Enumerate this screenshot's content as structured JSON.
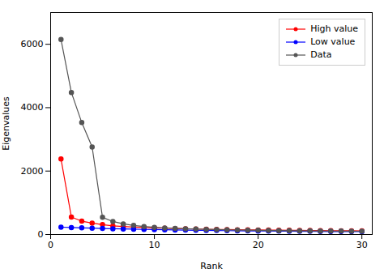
{
  "chart_data": {
    "type": "line",
    "title": "",
    "xlabel": "Rank",
    "ylabel": "Eigenvalues",
    "x": [
      1,
      2,
      3,
      4,
      5,
      6,
      7,
      8,
      9,
      10,
      11,
      12,
      13,
      14,
      15,
      16,
      17,
      18,
      19,
      20,
      21,
      22,
      23,
      24,
      25,
      26,
      27,
      28,
      29,
      30
    ],
    "series": [
      {
        "name": "High value",
        "color": "#FF0000",
        "marker": "circle",
        "values": [
          2380,
          550,
          420,
          360,
          310,
          270,
          250,
          235,
          220,
          208,
          198,
          188,
          180,
          173,
          166,
          160,
          155,
          150,
          146,
          142,
          138,
          135,
          132,
          129,
          126,
          123,
          121,
          118,
          116,
          114
        ]
      },
      {
        "name": "Low value",
        "color": "#0000FF",
        "marker": "circle",
        "values": [
          230,
          220,
          210,
          200,
          190,
          182,
          174,
          167,
          160,
          154,
          148,
          143,
          138,
          133,
          129,
          125,
          121,
          118,
          114,
          111,
          108,
          106,
          103,
          101,
          99,
          97,
          95,
          93,
          91,
          89
        ]
      },
      {
        "name": "Data",
        "color": "#555555",
        "marker": "circle",
        "values": [
          6150,
          4480,
          3530,
          2760,
          540,
          410,
          335,
          285,
          250,
          225,
          207,
          193,
          181,
          171,
          162,
          154,
          147,
          141,
          136,
          131,
          127,
          123,
          120,
          116,
          113,
          111,
          108,
          106,
          104,
          102
        ]
      }
    ],
    "xlim": [
      0,
      31
    ],
    "ylim": [
      0,
      7000
    ],
    "xticks": [
      0,
      10,
      20,
      30
    ],
    "yticks": [
      0,
      2000,
      4000,
      6000
    ],
    "grid": false,
    "legend": "upper right"
  }
}
